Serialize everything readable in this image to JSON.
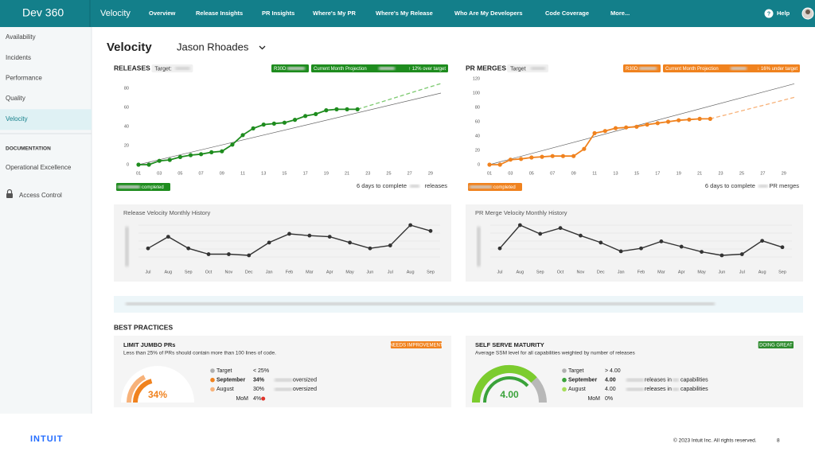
{
  "header": {
    "brand": "Dev 360",
    "section": "Velocity",
    "nav": [
      "Overview",
      "Release Insights",
      "PR Insights",
      "Where's My PR",
      "Where's My Release",
      "Who Are My Developers",
      "Code Coverage",
      "More..."
    ],
    "help": "Help"
  },
  "sidebar": {
    "items": [
      "Availability",
      "Incidents",
      "Performance",
      "Quality",
      "Velocity"
    ],
    "active": 4,
    "section": "DOCUMENTATION",
    "doc_items": [
      "Operational Excellence",
      "Access Control"
    ]
  },
  "page": {
    "title": "Velocity",
    "user": "Jason Rhoades"
  },
  "chart_data": [
    {
      "type": "line",
      "title": "RELEASES",
      "target_label": "Target:",
      "badge": "R30D",
      "badge_color": "#1e8c1e",
      "projection": "Current Month Projection",
      "projection_change": "↑ 12% over target",
      "completed": "completed",
      "remaining": "6 days to complete",
      "remaining_unit": "releases",
      "xlim": [
        1,
        30
      ],
      "xticks": [
        {
          "value": 1,
          "label": "01"
        },
        {
          "value": 3,
          "label": "03"
        },
        {
          "value": 5,
          "label": "05"
        },
        {
          "value": 7,
          "label": "07"
        },
        {
          "value": 9,
          "label": "09"
        },
        11,
        13,
        15,
        17,
        19,
        21,
        23,
        25,
        27,
        29
      ],
      "ylim": [
        0,
        88
      ],
      "yticks": [
        0,
        20,
        40,
        60,
        80
      ],
      "series": [
        {
          "color": "#666666",
          "x": [
            1,
            30
          ],
          "values": [
            0,
            75
          ]
        },
        {
          "color": "#7cc96f",
          "dashed": true,
          "x": [
            22,
            30
          ],
          "values": [
            58,
            85
          ]
        },
        {
          "color": "#1e8c1e",
          "markers": true,
          "x": [
            1,
            2,
            3,
            4,
            5,
            6,
            7,
            8,
            9,
            10,
            11,
            12,
            13,
            14,
            15,
            16,
            17,
            18,
            19,
            20,
            21,
            22
          ],
          "values": [
            0,
            0,
            4,
            5,
            8,
            10,
            11,
            13,
            14,
            21,
            31,
            38,
            42,
            43,
            44,
            47,
            51,
            53,
            57,
            58,
            58,
            58
          ]
        }
      ]
    },
    {
      "type": "line",
      "title": "PR MERGES",
      "target_label": "Target",
      "badge": "R30D",
      "badge_color": "#f0821e",
      "projection": "Current Month Projection",
      "projection_change": "↓ 16% under target",
      "completed": "completed",
      "remaining": "6 days to complete",
      "remaining_unit": "PR merges",
      "xlim": [
        1,
        30
      ],
      "xticks": [
        {
          "value": 1,
          "label": "01"
        },
        {
          "value": 3,
          "label": "03"
        },
        {
          "value": 5,
          "label": "05"
        },
        {
          "value": 7,
          "label": "07"
        },
        {
          "value": 9,
          "label": "09"
        },
        11,
        13,
        15,
        17,
        19,
        21,
        23,
        25,
        27,
        29
      ],
      "ylim": [
        0,
        120
      ],
      "yticks": [
        0,
        20,
        40,
        60,
        80,
        100,
        120
      ],
      "series": [
        {
          "color": "#666666",
          "x": [
            1,
            30
          ],
          "values": [
            0,
            113
          ]
        },
        {
          "color": "#f7b27a",
          "dashed": true,
          "x": [
            22,
            30
          ],
          "values": [
            64,
            94
          ]
        },
        {
          "color": "#f0821e",
          "markers": true,
          "x": [
            1,
            2,
            3,
            4,
            5,
            6,
            7,
            8,
            9,
            10,
            11,
            12,
            13,
            14,
            15,
            16,
            17,
            18,
            19,
            20,
            21,
            22
          ],
          "values": [
            0,
            0,
            7,
            8,
            10,
            11,
            12,
            12,
            12,
            22,
            44,
            47,
            51,
            52,
            53,
            56,
            58,
            60,
            62,
            63,
            64,
            64
          ]
        }
      ]
    },
    {
      "type": "history",
      "title": "Release Velocity Monthly History",
      "categories": [
        "Jul",
        "Aug",
        "Sep",
        "Oct",
        "Nov",
        "Dec",
        "Jan",
        "Feb",
        "Mar",
        "Apr",
        "May",
        "Jun",
        "Jul",
        "Aug",
        "Sep"
      ],
      "series": [
        {
          "color": "#333333",
          "values": [
            30,
            50,
            30,
            20,
            20,
            18,
            40,
            55,
            52,
            50,
            40,
            30,
            35,
            70,
            60
          ]
        }
      ]
    },
    {
      "type": "history",
      "title": "PR Merge Velocity Monthly History",
      "categories": [
        "Jul",
        "Aug",
        "Sep",
        "Oct",
        "Nov",
        "Dec",
        "Jan",
        "Feb",
        "Mar",
        "Apr",
        "May",
        "Jun",
        "Jul",
        "Aug",
        "Sep"
      ],
      "series": [
        {
          "color": "#333333",
          "values": [
            50,
            90,
            75,
            85,
            72,
            60,
            45,
            50,
            62,
            53,
            44,
            38,
            40,
            63,
            52
          ]
        }
      ]
    }
  ],
  "best_practices": {
    "title": "BEST PRACTICES",
    "cards": [
      {
        "title": "LIMIT JUMBO PRs",
        "subtitle": "Less than 25% of PRs should contain more than 100 lines of code.",
        "badge": "NEEDS IMPROVEMENT",
        "badge_color": "#f0821e",
        "value": 34,
        "value_label": "34%",
        "color": "#f0821e",
        "legend": [
          {
            "label": "Target",
            "value": "< 25%",
            "color": "#b0b0b0"
          },
          {
            "label": "September",
            "value": "34%",
            "text": "oversized",
            "color": "#f0821e"
          },
          {
            "label": "August",
            "value": "30%",
            "text": "oversized",
            "color": "#f7b27a"
          },
          {
            "label": "MoM",
            "value": "4%",
            "flag_color": "#e0332a"
          }
        ]
      },
      {
        "title": "SELF SERVE MATURITY",
        "subtitle": "Average SSM level for all capabilities weighted by number of releases",
        "badge": "DOING GREAT",
        "badge_color": "#2e8b2e",
        "value": 4.0,
        "value_label": "4.00",
        "color": "#7ccc2e",
        "legend": [
          {
            "label": "Target",
            "value": "> 4.00",
            "color": "#b0b0b0"
          },
          {
            "label": "September",
            "value": "4.00",
            "text": "releases in",
            "text2": "capabilities",
            "color": "#3aa23a"
          },
          {
            "label": "August",
            "value": "4.00",
            "text": "releases in",
            "text2": "capabilities",
            "color": "#a6dd5a"
          },
          {
            "label": "MoM",
            "value": "0%"
          }
        ]
      }
    ]
  },
  "footer": {
    "brand": "INTUIT",
    "copyright": "© 2023 Intuit Inc. All rights reserved.",
    "page": "8"
  }
}
